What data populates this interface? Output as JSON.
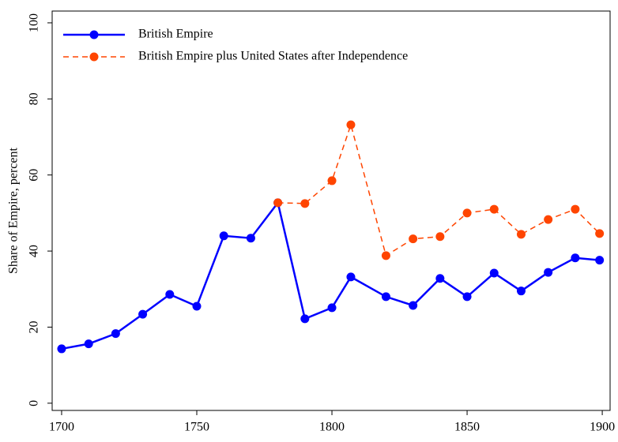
{
  "chart_data": {
    "type": "line",
    "y_label": "Share of Empire, percent",
    "x": [
      1700,
      1710,
      1720,
      1730,
      1740,
      1750,
      1760,
      1770,
      1780,
      1790,
      1800,
      1807,
      1820,
      1830,
      1840,
      1850,
      1860,
      1870,
      1880,
      1890,
      1899
    ],
    "series": [
      {
        "name": "British Empire",
        "color": "#0000ff",
        "dash": false,
        "values": [
          14.3,
          15.6,
          18.3,
          23.4,
          28.6,
          25.5,
          44.0,
          43.4,
          52.7,
          22.2,
          25.1,
          33.2,
          28.0,
          25.7,
          32.8,
          28.0,
          34.2,
          29.5,
          34.4,
          38.2,
          37.6
        ]
      },
      {
        "name": "British Empire plus United States after Independence",
        "color": "#ff4500",
        "dash": true,
        "values": [
          null,
          null,
          null,
          null,
          null,
          null,
          null,
          null,
          52.7,
          52.5,
          58.5,
          73.2,
          38.8,
          43.2,
          43.8,
          50.0,
          51.0,
          44.4,
          48.3,
          51.0,
          44.6
        ]
      }
    ],
    "xlim": [
      1696.5,
      1902.9
    ],
    "ylim": [
      -1.9,
      103.1
    ],
    "xticks": [
      1700,
      1750,
      1800,
      1850,
      1900
    ],
    "yticks": [
      0,
      20,
      40,
      60,
      80,
      100
    ],
    "legend": "top-left"
  }
}
